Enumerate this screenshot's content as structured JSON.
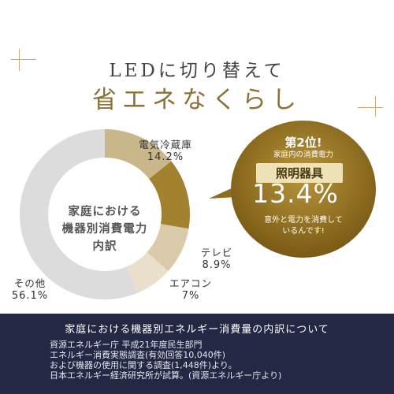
{
  "heading": {
    "line1": "LEDに切り替えて",
    "line2": "省エネなくらし"
  },
  "chart_data": {
    "type": "pie",
    "title": "家庭における機器別消費電力内訳",
    "center_label_lines": [
      "家庭における",
      "機器別消費電力",
      "内訳"
    ],
    "categories": [
      "電気冷蔵庫",
      "照明器具",
      "テレビ",
      "エアコン",
      "その他"
    ],
    "values": [
      14.2,
      13.4,
      8.9,
      7,
      56.1
    ],
    "value_labels": [
      "14.2%",
      "13.4%",
      "8.9%",
      "7%",
      "56.1%"
    ],
    "colors": [
      "#c9b68a",
      "#a2822f",
      "#d9cba9",
      "#e9dfcb",
      "#dcdcdc"
    ]
  },
  "callout": {
    "rank": "第2位!",
    "subtitle": "家庭内の消費電力",
    "category": "照明器具",
    "percent": "13.4%",
    "note_lines": [
      "意外と電力を消費して",
      "いるんです!"
    ]
  },
  "footer": {
    "title": "家庭における機器別エネルギー消費量の内訳について",
    "lines": [
      "資源エネルギー庁 平成21年度民生部門",
      "エネルギー消費実態調査(有効回答10,040件)",
      "および機器の使用に関する調査(1,448件)より。",
      "日本エネルギー経済研究所が試算。(資源エネルギー庁より)"
    ]
  }
}
